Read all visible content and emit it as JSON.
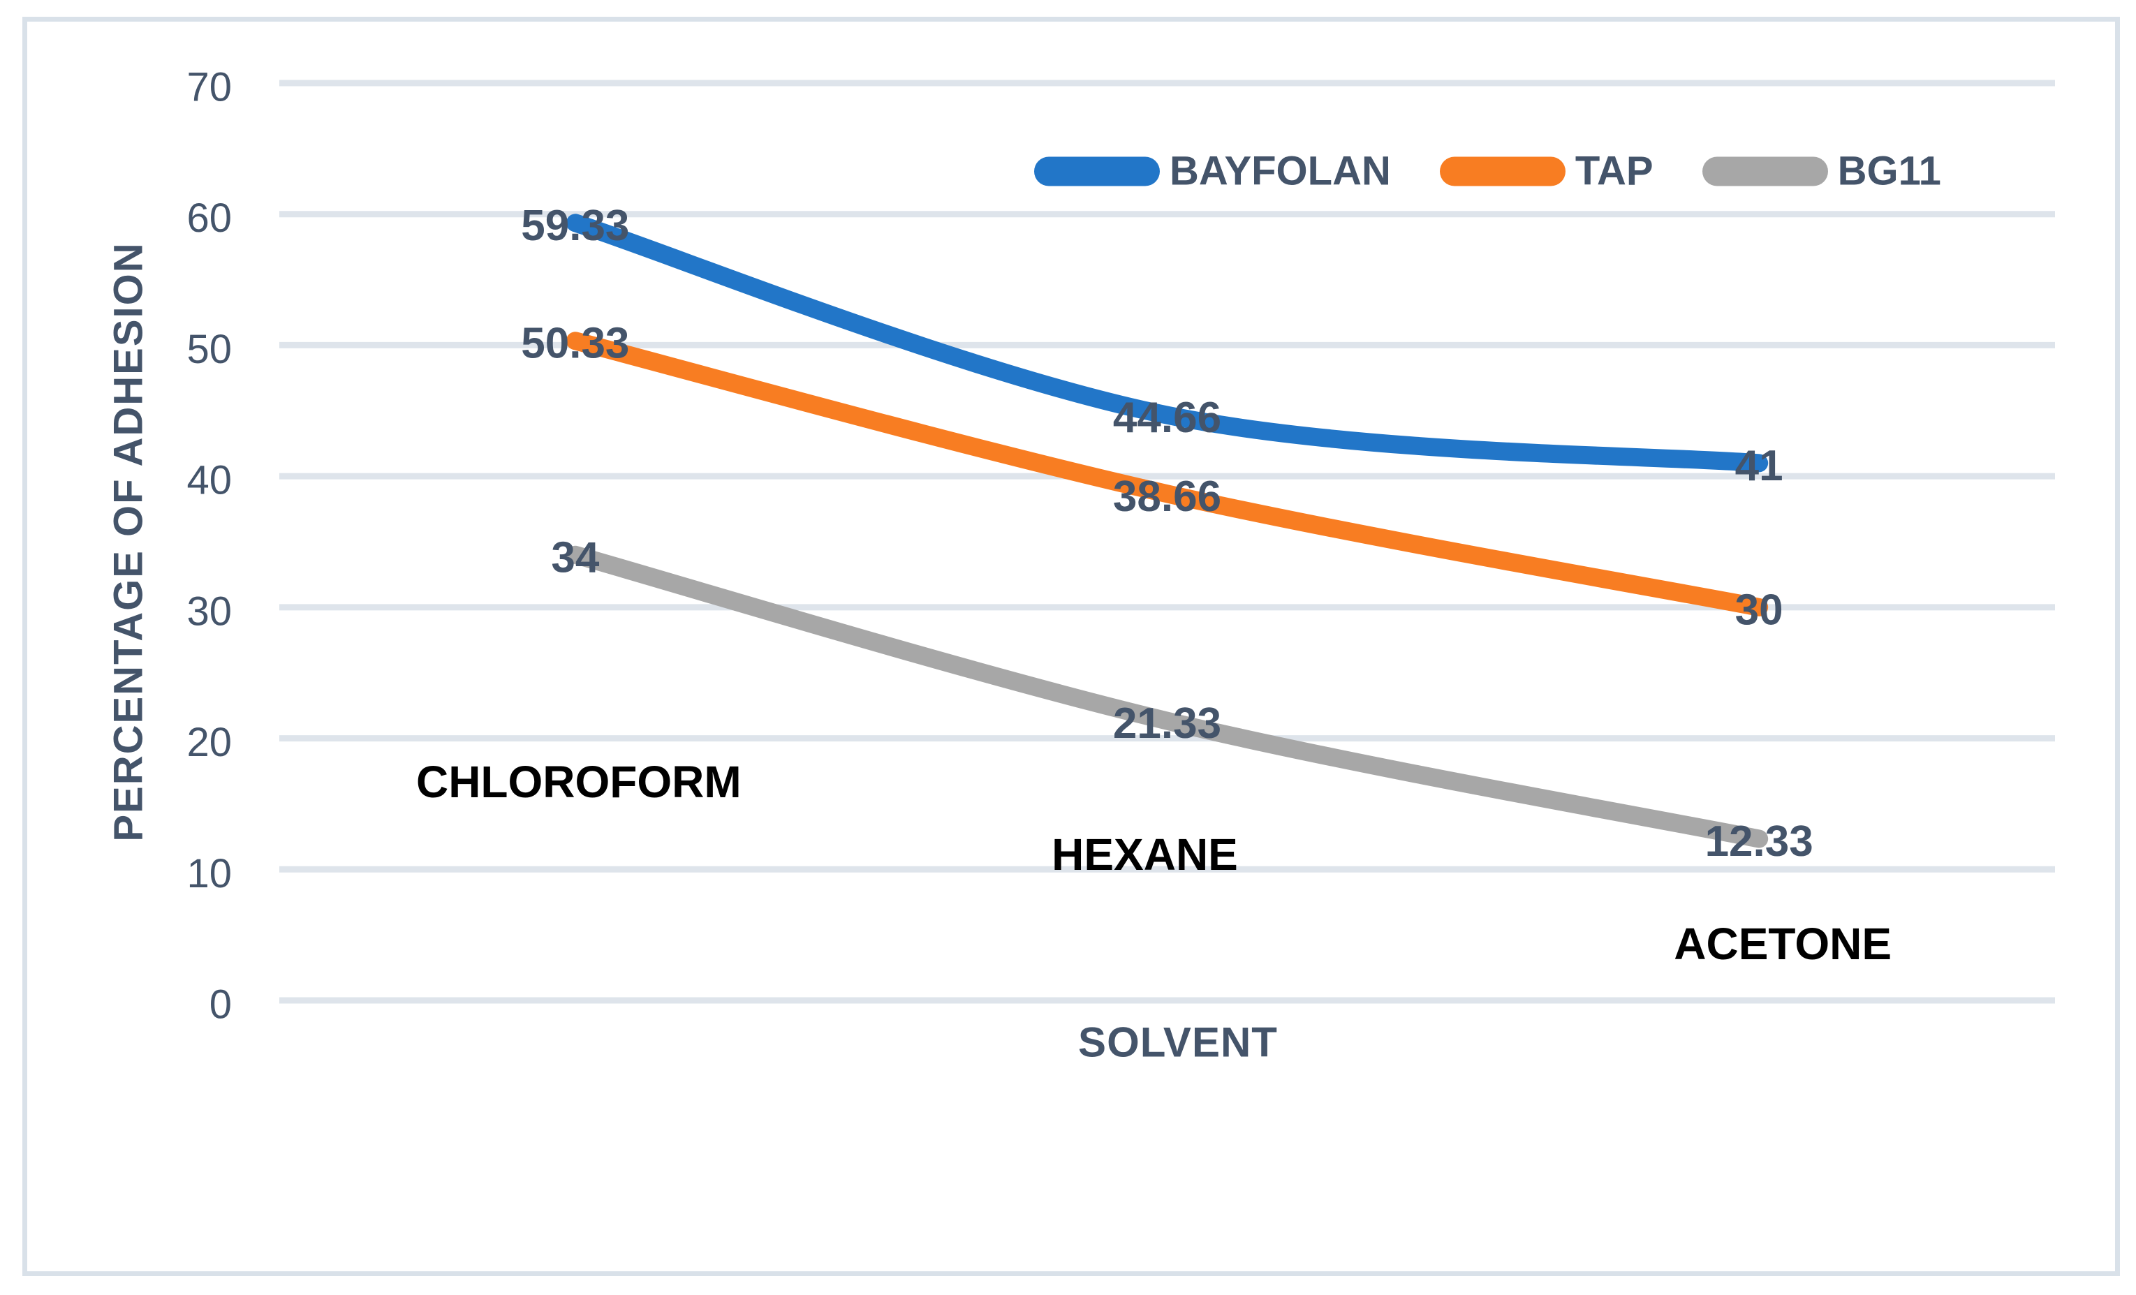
{
  "chart_data": {
    "type": "line",
    "title": "",
    "categories": [
      "CHLOROFORM",
      "HEXANE",
      "ACETONE"
    ],
    "series": [
      {
        "name": "BAYFOLAN",
        "color": "#2276C8",
        "values": [
          59.33,
          44.66,
          41
        ]
      },
      {
        "name": "TAP",
        "color": "#F87D22",
        "values": [
          50.33,
          38.66,
          30
        ]
      },
      {
        "name": "BG11",
        "color": "#A7A7A7",
        "values": [
          34,
          21.33,
          12.33
        ]
      }
    ],
    "data_labels": [
      [
        "59.33",
        "44.66",
        "41"
      ],
      [
        "50.33",
        "38.66",
        "30"
      ],
      [
        "34",
        "21.33",
        "12.33"
      ]
    ],
    "xlabel": "SOLVENT",
    "ylabel": "PERCENTAGE OF ADHESION",
    "ylim": [
      0,
      70
    ],
    "ytick_step": 10,
    "yticks": [
      "0",
      "10",
      "20",
      "30",
      "40",
      "50",
      "60",
      "70"
    ],
    "grid": true,
    "legend_position": "top-right",
    "colors": {
      "axis_text": "#44546A",
      "data_label_text": "#44546A",
      "category_text": "#000000",
      "gridline": "#DEE4EB",
      "frame_border": "#D9E1E9",
      "background": "#FFFFFF"
    }
  }
}
